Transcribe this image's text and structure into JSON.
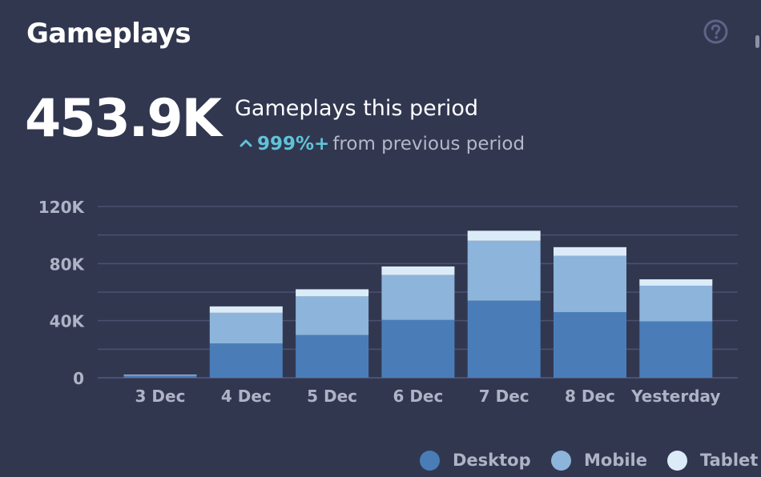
{
  "widget": {
    "title": "Gameplays",
    "help_icon": "question-circle-icon"
  },
  "kpi": {
    "value": "453.9K",
    "label": "Gameplays this period",
    "change_pct": "999%+",
    "change_text": "from previous period",
    "change_icon": "chevron-up-icon"
  },
  "colors": {
    "background": "#323750",
    "desktop": "#4a7db8",
    "mobile": "#8db4da",
    "tablet": "#dcebf8",
    "grid": "#4b5171",
    "axis_text": "#aeb3c6",
    "accent": "#5fc4d8"
  },
  "chart_data": {
    "type": "bar",
    "stacked": true,
    "categories": [
      "3 Dec",
      "4 Dec",
      "5 Dec",
      "6 Dec",
      "7 Dec",
      "8 Dec",
      "Yesterday"
    ],
    "series": [
      {
        "name": "Desktop",
        "values": [
          1500,
          24000,
          30000,
          40500,
          54000,
          46000,
          39500
        ]
      },
      {
        "name": "Mobile",
        "values": [
          500,
          21500,
          27000,
          31500,
          42000,
          39500,
          25000
        ]
      },
      {
        "name": "Tablet",
        "values": [
          200,
          4500,
          5000,
          6000,
          7000,
          6000,
          4500
        ]
      }
    ],
    "ylim": [
      0,
      120000
    ],
    "y_ticks": [
      {
        "value": 0,
        "label": "0"
      },
      {
        "value": 40000,
        "label": "40K"
      },
      {
        "value": 80000,
        "label": "80K"
      },
      {
        "value": 120000,
        "label": "120K"
      }
    ],
    "minor_grid_step": 20000,
    "grid": true,
    "legend_position": "bottom-right"
  },
  "legend": [
    {
      "label": "Desktop",
      "color": "#4a7db8"
    },
    {
      "label": "Mobile",
      "color": "#8db4da"
    },
    {
      "label": "Tablet",
      "color": "#dcebf8"
    }
  ]
}
